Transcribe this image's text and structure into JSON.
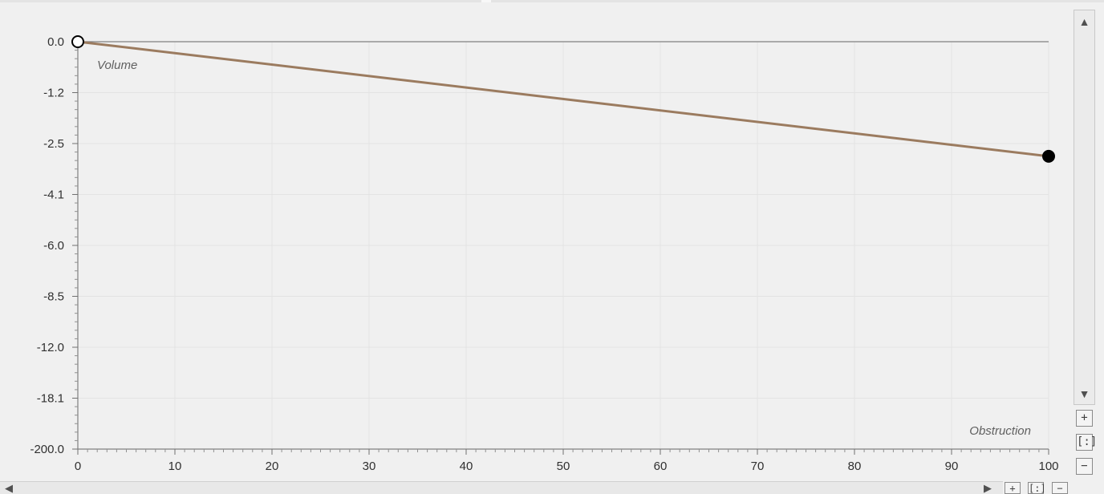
{
  "chart_data": {
    "type": "line",
    "x_label": "Obstruction",
    "y_label": "Volume",
    "x_ticks": [
      "0",
      "10",
      "20",
      "30",
      "40",
      "50",
      "60",
      "70",
      "80",
      "90",
      "100"
    ],
    "x_range": [
      0,
      100
    ],
    "y_ticks": [
      "0.0",
      "-1.2",
      "-2.5",
      "-4.1",
      "-6.0",
      "-8.5",
      "-12.0",
      "-18.1",
      "-200.0"
    ],
    "y_scale": "non-linear (ticks evenly spaced)",
    "grid": true,
    "series": [
      {
        "color": "#9b7b5f",
        "points": [
          {
            "x": 0,
            "y": 0.0,
            "marker": "hollow"
          },
          {
            "x": 100,
            "y": -2.9,
            "marker": "filled"
          }
        ]
      }
    ]
  },
  "icons": {
    "scroll_up": "▲",
    "scroll_down": "▼",
    "scroll_left": "◀",
    "scroll_right": "▶",
    "zoom_in": "+",
    "zoom_reset": "[:]",
    "zoom_out": "−"
  }
}
